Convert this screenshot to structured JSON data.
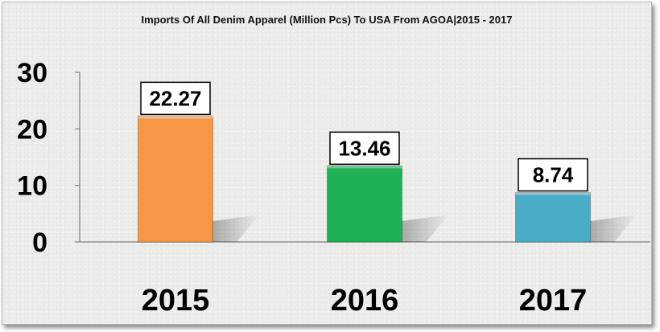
{
  "chart_data": {
    "type": "bar",
    "title": "Imports Of All Denim Apparel (Million Pcs) To USA From AGOA|2015 - 2017",
    "categories": [
      "2015",
      "2016",
      "2017"
    ],
    "values": [
      22.27,
      13.46,
      8.74
    ],
    "value_labels": [
      "22.27",
      "13.46",
      "8.74"
    ],
    "bar_colors": [
      "#f79646",
      "#1fb155",
      "#4bacc6"
    ],
    "ylim": [
      0,
      30
    ],
    "yticks": [
      "0",
      "10",
      "20",
      "30"
    ],
    "ytick_values": [
      0,
      10,
      20,
      30
    ],
    "xlabel": "",
    "ylabel": "",
    "grid": false,
    "legend": "none"
  }
}
